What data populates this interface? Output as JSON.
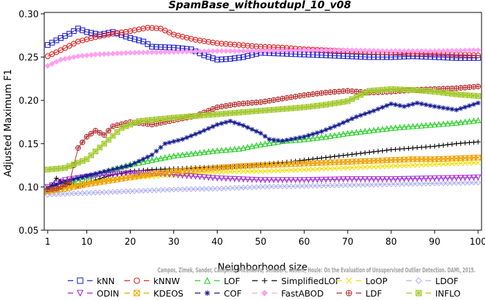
{
  "chart_data": {
    "type": "line",
    "title": "SpamBase_withoutdupl_10_v08",
    "xlabel": "Neighborhood size",
    "ylabel": "Adjusted Maximum F1",
    "xlim": [
      1,
      100
    ],
    "ylim": [
      0.05,
      0.3
    ],
    "xticks": [
      1,
      10,
      20,
      30,
      40,
      50,
      60,
      70,
      80,
      90,
      100
    ],
    "yticks": [
      0.05,
      0.1,
      0.15,
      0.2,
      0.25,
      0.3
    ],
    "ytick_labels": [
      "0.05",
      "0.10",
      "0.15",
      "0.20",
      "0.25",
      "0.30"
    ],
    "grid": false,
    "legend_position": "bottom",
    "credit": "Campos, Zimek, Sander, Campello, Micenkova, Schubert, Assent, Houle: On the Evaluation of Unsupervised Outlier Detection. DAMI, 2015.",
    "series": [
      {
        "name": "kNN",
        "color": "#1f1fd0",
        "marker": "square",
        "points": [
          [
            1,
            0.264
          ],
          [
            4,
            0.272
          ],
          [
            6,
            0.277
          ],
          [
            8,
            0.283
          ],
          [
            10,
            0.279
          ],
          [
            13,
            0.276
          ],
          [
            16,
            0.279
          ],
          [
            20,
            0.272
          ],
          [
            23,
            0.268
          ],
          [
            25,
            0.262
          ],
          [
            30,
            0.261
          ],
          [
            34,
            0.259
          ],
          [
            37,
            0.252
          ],
          [
            40,
            0.247
          ],
          [
            43,
            0.248
          ],
          [
            46,
            0.25
          ],
          [
            50,
            0.255
          ],
          [
            55,
            0.254
          ],
          [
            60,
            0.253
          ],
          [
            65,
            0.252
          ],
          [
            70,
            0.251
          ],
          [
            75,
            0.25
          ],
          [
            80,
            0.25
          ],
          [
            85,
            0.251
          ],
          [
            90,
            0.25
          ],
          [
            95,
            0.249
          ],
          [
            100,
            0.249
          ]
        ]
      },
      {
        "name": "kNNW",
        "color": "#e01818",
        "marker": "circle",
        "points": [
          [
            1,
            0.251
          ],
          [
            4,
            0.258
          ],
          [
            8,
            0.268
          ],
          [
            12,
            0.273
          ],
          [
            16,
            0.277
          ],
          [
            20,
            0.28
          ],
          [
            24,
            0.284
          ],
          [
            27,
            0.283
          ],
          [
            30,
            0.276
          ],
          [
            35,
            0.27
          ],
          [
            40,
            0.266
          ],
          [
            45,
            0.264
          ],
          [
            50,
            0.262
          ],
          [
            55,
            0.261
          ],
          [
            60,
            0.259
          ],
          [
            65,
            0.258
          ],
          [
            70,
            0.257
          ],
          [
            75,
            0.256
          ],
          [
            80,
            0.255
          ],
          [
            85,
            0.254
          ],
          [
            90,
            0.254
          ],
          [
            95,
            0.253
          ],
          [
            100,
            0.252
          ]
        ]
      },
      {
        "name": "LOF",
        "color": "#1fd01f",
        "marker": "triangle-up",
        "points": [
          [
            1,
            0.095
          ],
          [
            5,
            0.101
          ],
          [
            10,
            0.111
          ],
          [
            15,
            0.119
          ],
          [
            20,
            0.126
          ],
          [
            25,
            0.131
          ],
          [
            30,
            0.136
          ],
          [
            35,
            0.139
          ],
          [
            40,
            0.142
          ],
          [
            45,
            0.144
          ],
          [
            50,
            0.149
          ],
          [
            55,
            0.153
          ],
          [
            60,
            0.155
          ],
          [
            65,
            0.158
          ],
          [
            70,
            0.162
          ],
          [
            75,
            0.165
          ],
          [
            80,
            0.168
          ],
          [
            85,
            0.17
          ],
          [
            90,
            0.172
          ],
          [
            95,
            0.174
          ],
          [
            100,
            0.177
          ]
        ]
      },
      {
        "name": "SimplifiedLOF",
        "color": "#000000",
        "marker": "plus",
        "points": [
          [
            1,
            0.095
          ],
          [
            3,
            0.11
          ],
          [
            5,
            0.104
          ],
          [
            8,
            0.101
          ],
          [
            12,
            0.108
          ],
          [
            16,
            0.114
          ],
          [
            20,
            0.118
          ],
          [
            25,
            0.12
          ],
          [
            30,
            0.121
          ],
          [
            35,
            0.122
          ],
          [
            40,
            0.123
          ],
          [
            45,
            0.124
          ],
          [
            50,
            0.126
          ],
          [
            55,
            0.128
          ],
          [
            60,
            0.131
          ],
          [
            65,
            0.134
          ],
          [
            70,
            0.137
          ],
          [
            75,
            0.14
          ],
          [
            80,
            0.143
          ],
          [
            85,
            0.145
          ],
          [
            90,
            0.147
          ],
          [
            95,
            0.15
          ],
          [
            100,
            0.152
          ]
        ]
      },
      {
        "name": "LoOP",
        "color": "#f0e000",
        "marker": "x",
        "points": [
          [
            1,
            0.093
          ],
          [
            5,
            0.099
          ],
          [
            10,
            0.104
          ],
          [
            15,
            0.108
          ],
          [
            20,
            0.111
          ],
          [
            25,
            0.112
          ],
          [
            30,
            0.114
          ],
          [
            35,
            0.116
          ],
          [
            40,
            0.117
          ],
          [
            45,
            0.118
          ],
          [
            50,
            0.118
          ],
          [
            55,
            0.119
          ],
          [
            60,
            0.12
          ],
          [
            65,
            0.121
          ],
          [
            70,
            0.122
          ],
          [
            75,
            0.123
          ],
          [
            80,
            0.124
          ],
          [
            85,
            0.125
          ],
          [
            90,
            0.126
          ],
          [
            95,
            0.127
          ],
          [
            100,
            0.128
          ]
        ]
      },
      {
        "name": "LDOF",
        "color": "#b0b0ee",
        "marker": "diamond",
        "points": [
          [
            1,
            0.091
          ],
          [
            10,
            0.093
          ],
          [
            20,
            0.095
          ],
          [
            30,
            0.097
          ],
          [
            40,
            0.098
          ],
          [
            50,
            0.1
          ],
          [
            60,
            0.101
          ],
          [
            70,
            0.102
          ],
          [
            80,
            0.103
          ],
          [
            90,
            0.104
          ],
          [
            100,
            0.105
          ]
        ]
      },
      {
        "name": "ODIN",
        "color": "#a020d8",
        "marker": "triangle-down",
        "points": [
          [
            1,
            0.1
          ],
          [
            5,
            0.108
          ],
          [
            10,
            0.112
          ],
          [
            15,
            0.114
          ],
          [
            20,
            0.116
          ],
          [
            25,
            0.116
          ],
          [
            30,
            0.114
          ],
          [
            40,
            0.11
          ],
          [
            50,
            0.108
          ],
          [
            60,
            0.108
          ],
          [
            70,
            0.109
          ],
          [
            80,
            0.109
          ],
          [
            90,
            0.11
          ],
          [
            100,
            0.111
          ]
        ]
      },
      {
        "name": "KDEOS",
        "color": "#f0a000",
        "marker": "square-x",
        "points": [
          [
            1,
            0.095
          ],
          [
            5,
            0.098
          ],
          [
            10,
            0.103
          ],
          [
            15,
            0.107
          ],
          [
            20,
            0.111
          ],
          [
            25,
            0.115
          ],
          [
            30,
            0.118
          ],
          [
            35,
            0.12
          ],
          [
            40,
            0.122
          ],
          [
            45,
            0.124
          ],
          [
            50,
            0.125
          ],
          [
            55,
            0.126
          ],
          [
            60,
            0.127
          ],
          [
            65,
            0.128
          ],
          [
            70,
            0.129
          ],
          [
            75,
            0.13
          ],
          [
            80,
            0.131
          ],
          [
            85,
            0.132
          ],
          [
            90,
            0.132
          ],
          [
            95,
            0.133
          ],
          [
            100,
            0.134
          ]
        ]
      },
      {
        "name": "COF",
        "color": "#101890",
        "marker": "asterisk",
        "points": [
          [
            1,
            0.099
          ],
          [
            5,
            0.106
          ],
          [
            10,
            0.113
          ],
          [
            15,
            0.119
          ],
          [
            20,
            0.125
          ],
          [
            25,
            0.137
          ],
          [
            28,
            0.15
          ],
          [
            32,
            0.155
          ],
          [
            36,
            0.163
          ],
          [
            40,
            0.172
          ],
          [
            43,
            0.176
          ],
          [
            46,
            0.171
          ],
          [
            50,
            0.162
          ],
          [
            52,
            0.155
          ],
          [
            55,
            0.153
          ],
          [
            60,
            0.158
          ],
          [
            64,
            0.164
          ],
          [
            68,
            0.172
          ],
          [
            72,
            0.181
          ],
          [
            76,
            0.188
          ],
          [
            80,
            0.196
          ],
          [
            83,
            0.193
          ],
          [
            86,
            0.197
          ],
          [
            90,
            0.193
          ],
          [
            95,
            0.189
          ],
          [
            100,
            0.197
          ]
        ]
      },
      {
        "name": "FastABOD",
        "color": "#ffa0f0",
        "marker": "diamond-filled",
        "points": [
          [
            1,
            0.24
          ],
          [
            4,
            0.247
          ],
          [
            8,
            0.251
          ],
          [
            12,
            0.253
          ],
          [
            16,
            0.254
          ],
          [
            20,
            0.255
          ],
          [
            30,
            0.256
          ],
          [
            40,
            0.257
          ],
          [
            50,
            0.257
          ],
          [
            60,
            0.258
          ],
          [
            70,
            0.258
          ],
          [
            80,
            0.257
          ],
          [
            90,
            0.257
          ],
          [
            100,
            0.258
          ]
        ]
      },
      {
        "name": "LDF",
        "color": "#b83030",
        "marker": "circle-plus",
        "points": [
          [
            1,
            0.097
          ],
          [
            3,
            0.098
          ],
          [
            6,
            0.105
          ],
          [
            8,
            0.145
          ],
          [
            10,
            0.158
          ],
          [
            12,
            0.165
          ],
          [
            14,
            0.16
          ],
          [
            16,
            0.17
          ],
          [
            20,
            0.175
          ],
          [
            25,
            0.172
          ],
          [
            30,
            0.177
          ],
          [
            35,
            0.182
          ],
          [
            40,
            0.192
          ],
          [
            45,
            0.196
          ],
          [
            50,
            0.198
          ],
          [
            55,
            0.202
          ],
          [
            60,
            0.206
          ],
          [
            65,
            0.209
          ],
          [
            70,
            0.211
          ],
          [
            75,
            0.209
          ],
          [
            80,
            0.21
          ],
          [
            85,
            0.212
          ],
          [
            90,
            0.213
          ],
          [
            95,
            0.214
          ],
          [
            100,
            0.216
          ]
        ]
      },
      {
        "name": "INFLO",
        "color": "#a0c828",
        "marker": "star-box",
        "points": [
          [
            1,
            0.12
          ],
          [
            5,
            0.122
          ],
          [
            8,
            0.128
          ],
          [
            10,
            0.132
          ],
          [
            14,
            0.15
          ],
          [
            18,
            0.168
          ],
          [
            22,
            0.176
          ],
          [
            26,
            0.178
          ],
          [
            30,
            0.18
          ],
          [
            35,
            0.182
          ],
          [
            40,
            0.184
          ],
          [
            45,
            0.186
          ],
          [
            50,
            0.188
          ],
          [
            55,
            0.19
          ],
          [
            60,
            0.192
          ],
          [
            65,
            0.195
          ],
          [
            70,
            0.199
          ],
          [
            75,
            0.211
          ],
          [
            80,
            0.213
          ],
          [
            85,
            0.212
          ],
          [
            90,
            0.21
          ],
          [
            95,
            0.207
          ],
          [
            100,
            0.205
          ]
        ]
      }
    ]
  }
}
